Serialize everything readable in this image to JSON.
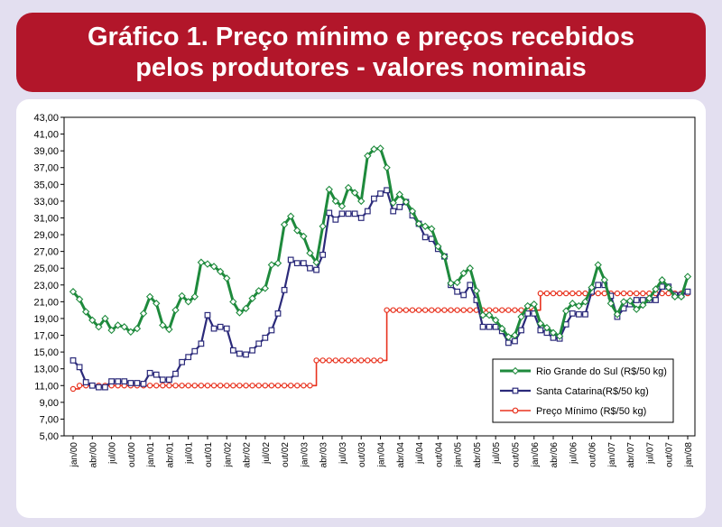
{
  "header": {
    "title_line1": "Gráfico 1. Preço mínimo e preços recebidos",
    "title_line2": "pelos produtores - valores nominais"
  },
  "colors": {
    "banner": "#b2162a",
    "background": "#e3dff0",
    "rs": "#1e8a3c",
    "sc": "#2b2a7a",
    "pm": "#e8321e"
  },
  "chart_data": {
    "type": "line",
    "title": "Gráfico 1. Preço mínimo e preços recebidos pelos produtores - valores nominais",
    "xlabel": "",
    "ylabel": "",
    "ylim": [
      5,
      43
    ],
    "y_ticks": [
      "43,00",
      "41,00",
      "39,00",
      "37,00",
      "35,00",
      "33,00",
      "31,00",
      "29,00",
      "27,00",
      "25,00",
      "23,00",
      "21,00",
      "19,00",
      "17,00",
      "15,00",
      "13,00",
      "11,00",
      "9,00",
      "7,00",
      "5,00"
    ],
    "x_tick_labels": [
      "jan/00",
      "abr/00",
      "jul/00",
      "out/00",
      "jan/01",
      "abr/01",
      "jul/01",
      "out/01",
      "jan/02",
      "abr/02",
      "jul/02",
      "out/02",
      "jan/03",
      "abr/03",
      "jul/03",
      "out/03",
      "jan/04",
      "abr/04",
      "jul/04",
      "out/04",
      "jan/05",
      "abr/05",
      "jul/05",
      "out/05",
      "jan/06",
      "abr/06",
      "jul/06",
      "out/06",
      "jan/07",
      "abr/07",
      "jul/07",
      "out/07",
      "jan/08"
    ],
    "x_start": "jan/00",
    "grid": false,
    "legend_position": "bottom-right",
    "series": [
      {
        "name": "Rio Grande do Sul (R$/50 kg)",
        "values": [
          22.2,
          21.3,
          19.8,
          18.8,
          18.0,
          19.0,
          17.6,
          18.2,
          18.0,
          17.4,
          17.8,
          19.6,
          21.6,
          20.8,
          18.2,
          17.7,
          20.0,
          21.7,
          21.0,
          21.6,
          25.7,
          25.5,
          25.2,
          24.6,
          23.8,
          21.0,
          19.7,
          20.2,
          21.4,
          22.3,
          22.6,
          25.4,
          25.6,
          30.2,
          31.2,
          29.5,
          28.8,
          26.8,
          25.7,
          30.0,
          34.4,
          33.0,
          32.4,
          34.6,
          34.0,
          33.0,
          38.4,
          39.2,
          39.3,
          37.0,
          32.8,
          33.8,
          32.9,
          31.8,
          30.3,
          30.0,
          29.7,
          27.6,
          26.4,
          23.2,
          23.3,
          24.4,
          25.0,
          22.3,
          19.4,
          19.4,
          18.8,
          17.8,
          16.8,
          17.0,
          19.2,
          20.5,
          20.7,
          18.4,
          17.9,
          17.3,
          16.9,
          19.9,
          20.8,
          20.5,
          21.0,
          22.7,
          25.4,
          23.6,
          20.8,
          19.5,
          21.0,
          21.1,
          20.1,
          20.6,
          21.4,
          22.5,
          23.6,
          22.7,
          21.6,
          21.6,
          24.0
        ]
      },
      {
        "name": "Santa Catarina(R$/50 kg)",
        "values": [
          14.0,
          13.2,
          11.4,
          11.0,
          10.8,
          10.8,
          11.5,
          11.5,
          11.5,
          11.3,
          11.3,
          11.2,
          12.5,
          12.3,
          11.7,
          11.7,
          12.4,
          13.8,
          14.4,
          15.1,
          16.0,
          19.4,
          17.8,
          18.0,
          17.8,
          15.2,
          14.8,
          14.7,
          15.2,
          16.0,
          16.7,
          17.6,
          19.6,
          22.4,
          26.0,
          25.6,
          25.6,
          25.0,
          24.8,
          26.6,
          31.6,
          30.8,
          31.5,
          31.5,
          31.5,
          31.0,
          31.8,
          33.3,
          33.9,
          34.3,
          31.8,
          32.3,
          32.9,
          31.3,
          30.3,
          28.7,
          28.5,
          27.3,
          26.4,
          23.0,
          22.2,
          21.8,
          23.0,
          21.2,
          18.0,
          18.0,
          18.0,
          17.5,
          16.1,
          16.3,
          17.6,
          19.6,
          19.6,
          17.6,
          17.3,
          16.7,
          16.6,
          18.3,
          19.6,
          19.5,
          19.5,
          22.2,
          23.0,
          23.0,
          21.7,
          19.2,
          20.2,
          20.7,
          21.2,
          21.2,
          21.2,
          21.2,
          22.8,
          22.8,
          21.8,
          21.8,
          22.2
        ]
      },
      {
        "name": "Preço Mínimo (R$/50 kg)",
        "segments": [
          {
            "from": "jan/00",
            "to": "fev/03",
            "value": 11.0
          },
          {
            "from": "mar/03",
            "to": "jan/04",
            "value": 14.0
          },
          {
            "from": "fev/04",
            "to": "jan/06",
            "value": 20.0
          },
          {
            "from": "fev/06",
            "to": "jan/08",
            "value": 22.0
          }
        ],
        "first_value": 10.6
      }
    ]
  }
}
